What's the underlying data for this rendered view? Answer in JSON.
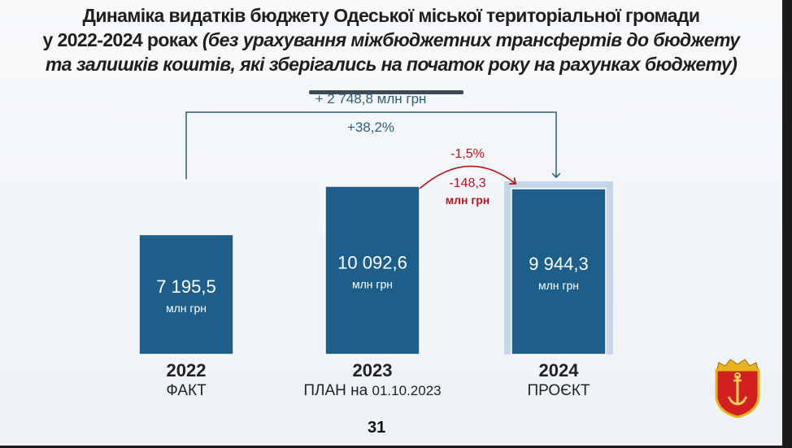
{
  "title": {
    "line1": "Динаміка видатків бюджету Одеської міської територіальної громади",
    "line2_bold": "у 2022-2024 роках",
    "line2_italic": "(без урахування міжбюджетних трансфертів  до бюджету",
    "line3": "та залишків коштів, які зберігались на початок року на рахунках бюджету)"
  },
  "chart_data": {
    "type": "bar",
    "categories": [
      "2022",
      "2023",
      "2024"
    ],
    "category_notes": [
      "ФАКТ",
      "ПЛАН на 01.10.2023",
      "ПРОЄКТ"
    ],
    "values": [
      7195.5,
      10092.6,
      9944.3
    ],
    "value_labels": [
      "7 195,5",
      "10 092,6",
      "9 944,3"
    ],
    "unit": "млн грн",
    "bar_color": "#1d5f8a",
    "highlight_color": "#c6d6ea",
    "annotations": {
      "growth_2022_2024_abs": "+ 2 748,8 млн грн",
      "growth_2022_2024_pct": "+38,2%",
      "change_2023_2024_pct": "-1,5%",
      "change_2023_2024_abs": "-148,3",
      "change_2023_2024_unit": "млн грн",
      "growth_color": "#2b5f78",
      "change_color": "#b8141b"
    }
  },
  "labels": {
    "note_2023_plan": "ПЛАН на",
    "note_2023_date": "01.10.2023"
  },
  "page_number": "31"
}
